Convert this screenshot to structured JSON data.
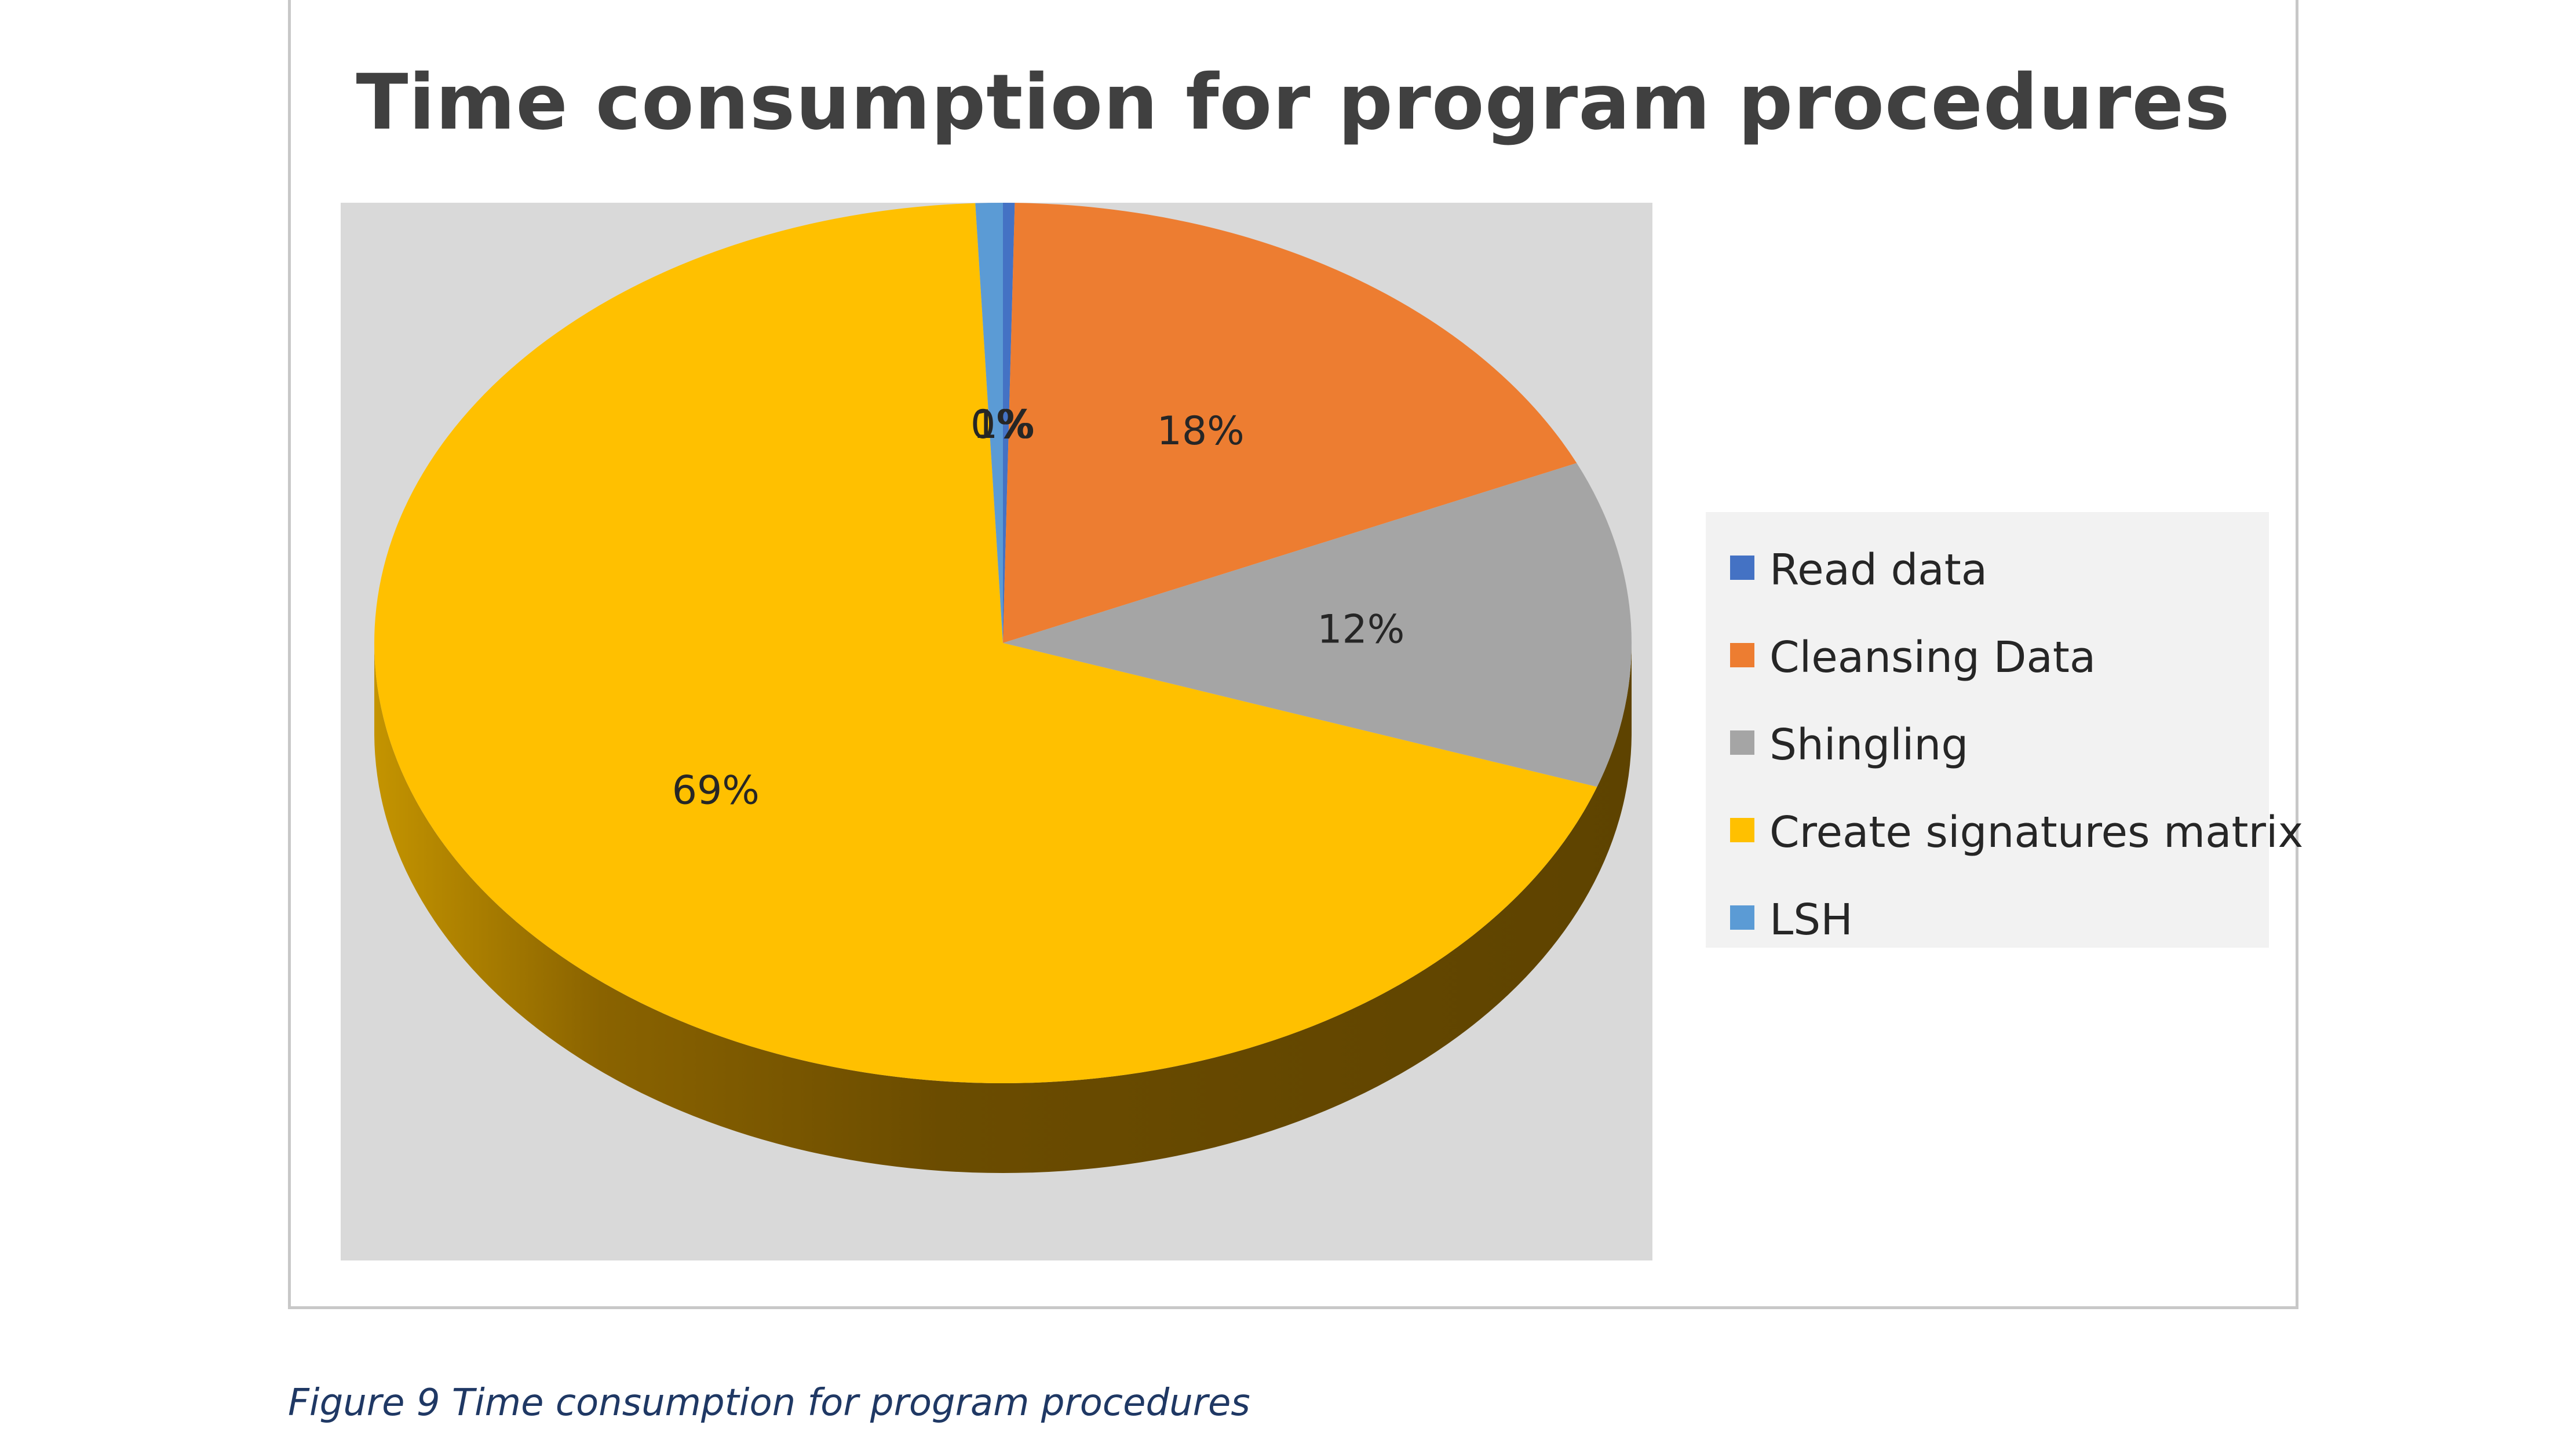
{
  "chart_data": {
    "type": "pie",
    "title": "Time consumption for program procedures",
    "categories": [
      "Read data",
      "Cleansing Data",
      "Shingling",
      "Create signatures matrix",
      "LSH"
    ],
    "values": [
      0.3,
      18,
      12,
      69,
      0.7
    ],
    "data_labels": [
      "0%",
      "18%",
      "12%",
      "69%",
      "1%"
    ],
    "colors": [
      "#4472c4",
      "#ed7d31",
      "#a5a5a5",
      "#ffc000",
      "#5b9bd5"
    ],
    "legend_position": "right",
    "style": "3d",
    "start_angle_deg": 0,
    "direction": "clockwise"
  },
  "legend": {
    "items": [
      {
        "label": "Read data",
        "color": "#4472c4"
      },
      {
        "label": "Cleansing Data",
        "color": "#ed7d31"
      },
      {
        "label": "Shingling",
        "color": "#a5a5a5"
      },
      {
        "label": "Create signatures matrix",
        "color": "#ffc000"
      },
      {
        "label": "LSH",
        "color": "#5b9bd5"
      }
    ]
  },
  "caption": "Figure 9 Time consumption for program procedures"
}
